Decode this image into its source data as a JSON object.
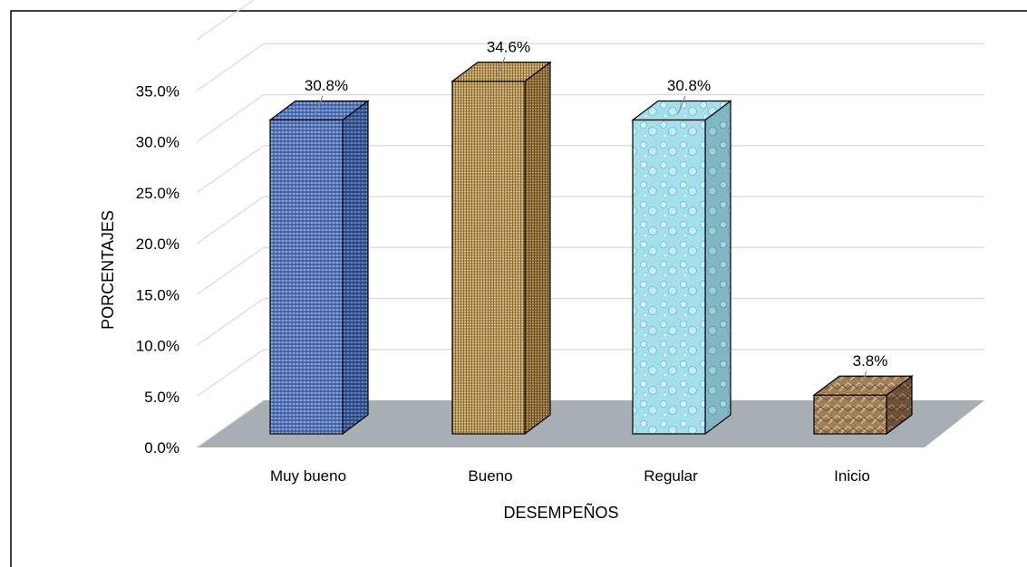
{
  "chart_data": {
    "type": "bar",
    "title": "",
    "xlabel": "DESEMPEÑOS",
    "ylabel": "PORCENTAJES",
    "categories": [
      "Muy bueno",
      "Bueno",
      "Regular",
      "Inicio"
    ],
    "values": [
      30.8,
      34.6,
      30.8,
      3.8
    ],
    "value_labels": [
      "30.8%",
      "34.6%",
      "30.8%",
      "3.8%"
    ],
    "y_ticks": [
      "0.0%",
      "5.0%",
      "10.0%",
      "15.0%",
      "20.0%",
      "25.0%",
      "30.0%",
      "35.0%"
    ],
    "ylim": [
      0,
      35
    ],
    "grid": true,
    "legend": "none",
    "three_d": true,
    "colors": {
      "bars": [
        "#4a6fb8",
        "#b8965a",
        "#9fdcea",
        "#9b7a55"
      ],
      "floor": "#a7aeb4",
      "grid": "#d9d9d9",
      "frame": "#000000"
    }
  }
}
